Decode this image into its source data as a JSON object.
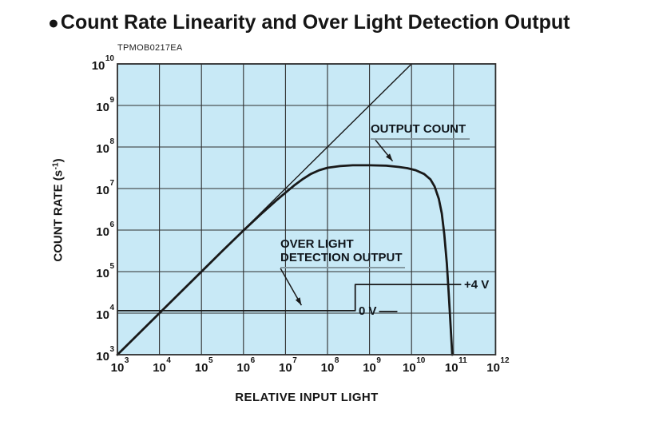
{
  "title": {
    "bullet": "●",
    "text": "Count Rate Linearity and Over Light Detection Output"
  },
  "figure_id": "TPMOB0217EA",
  "colors": {
    "plot_background": "#c8e9f6",
    "grid_line": "#2e2e2e",
    "curve": "#191919",
    "text": "#151515",
    "annotation_underline": "#8599a2",
    "page_background": "#ffffff"
  },
  "chart_data": {
    "type": "line",
    "title": "Count Rate Linearity and Over Light Detection Output",
    "xlabel": "RELATIVE INPUT LIGHT",
    "ylabel": "COUNT RATE (s⁻¹)",
    "ylabel_parts": {
      "prefix": "COUNT RATE (s",
      "sup": "-1",
      "suffix": ")"
    },
    "x_scale": "log10",
    "y_scale": "log10",
    "x_range_exponents": [
      3,
      12
    ],
    "y_range_exponents": [
      3,
      10
    ],
    "x_tick_exponents": [
      3,
      4,
      5,
      6,
      7,
      8,
      9,
      10,
      11,
      12
    ],
    "y_tick_exponents": [
      10,
      9,
      8,
      7,
      6,
      5,
      4,
      3
    ],
    "grid": true,
    "legend": "none",
    "series": [
      {
        "name": "linearity reference",
        "style": "thin straight line, slope 1 (count rate = relative input light)",
        "stroke_width": 1.4,
        "points_log10": [
          [
            3,
            3
          ],
          [
            10,
            10
          ]
        ]
      },
      {
        "name": "OUTPUT COUNT",
        "style": "thick curve: linear up to ~1e7, saturates near 3.6e7, cuts off sharply near 1e11",
        "stroke_width": 2.8,
        "points_log10": [
          [
            3,
            3
          ],
          [
            4,
            4
          ],
          [
            5,
            5
          ],
          [
            5.5,
            5.5
          ],
          [
            6,
            5.99
          ],
          [
            6.4,
            6.37
          ],
          [
            6.8,
            6.73
          ],
          [
            7,
            6.9
          ],
          [
            7.2,
            7.07
          ],
          [
            7.4,
            7.22
          ],
          [
            7.6,
            7.35
          ],
          [
            7.8,
            7.44
          ],
          [
            8,
            7.5
          ],
          [
            8.3,
            7.54
          ],
          [
            8.6,
            7.56
          ],
          [
            9,
            7.56
          ],
          [
            9.4,
            7.55
          ],
          [
            9.7,
            7.52
          ],
          [
            9.9,
            7.49
          ],
          [
            10.1,
            7.44
          ],
          [
            10.3,
            7.35
          ],
          [
            10.45,
            7.22
          ],
          [
            10.55,
            7.05
          ],
          [
            10.65,
            6.75
          ],
          [
            10.72,
            6.4
          ],
          [
            10.78,
            5.9
          ],
          [
            10.84,
            5.2
          ],
          [
            10.89,
            4.4
          ],
          [
            10.93,
            3.7
          ],
          [
            10.97,
            3
          ]
        ]
      },
      {
        "name": "OVER LIGHT DETECTION OUTPUT",
        "style": "logic step: 0 V level below ~4×10⁸ input, +4 V level above",
        "stroke_width": 1.8,
        "points_log10": [
          [
            3,
            4.06
          ],
          [
            8.66,
            4.06
          ],
          [
            8.66,
            4.69
          ],
          [
            11.17,
            4.69
          ]
        ]
      },
      {
        "name": "zero volt label leader",
        "style": "short line segment after the 0 V label",
        "stroke_width": 1.8,
        "points_log10": [
          [
            9.24,
            4.04
          ],
          [
            9.65,
            4.04
          ]
        ]
      }
    ],
    "annotations": {
      "output_count": {
        "label": "OUTPUT COUNT",
        "arrow_from_log10": [
          9.14,
          8.17
        ],
        "arrow_to_log10": [
          9.55,
          7.66
        ]
      },
      "over_light": {
        "line1": "OVER LIGHT",
        "line2": "DETECTION OUTPUT",
        "arrow_from_log10": [
          6.88,
          5.08
        ],
        "arrow_to_log10": [
          7.38,
          4.19
        ]
      },
      "zero_v": {
        "label": "0 V",
        "value_log10_y": 4.06
      },
      "plus_4v": {
        "label": "+4 V",
        "value_log10_y": 4.69
      }
    }
  }
}
